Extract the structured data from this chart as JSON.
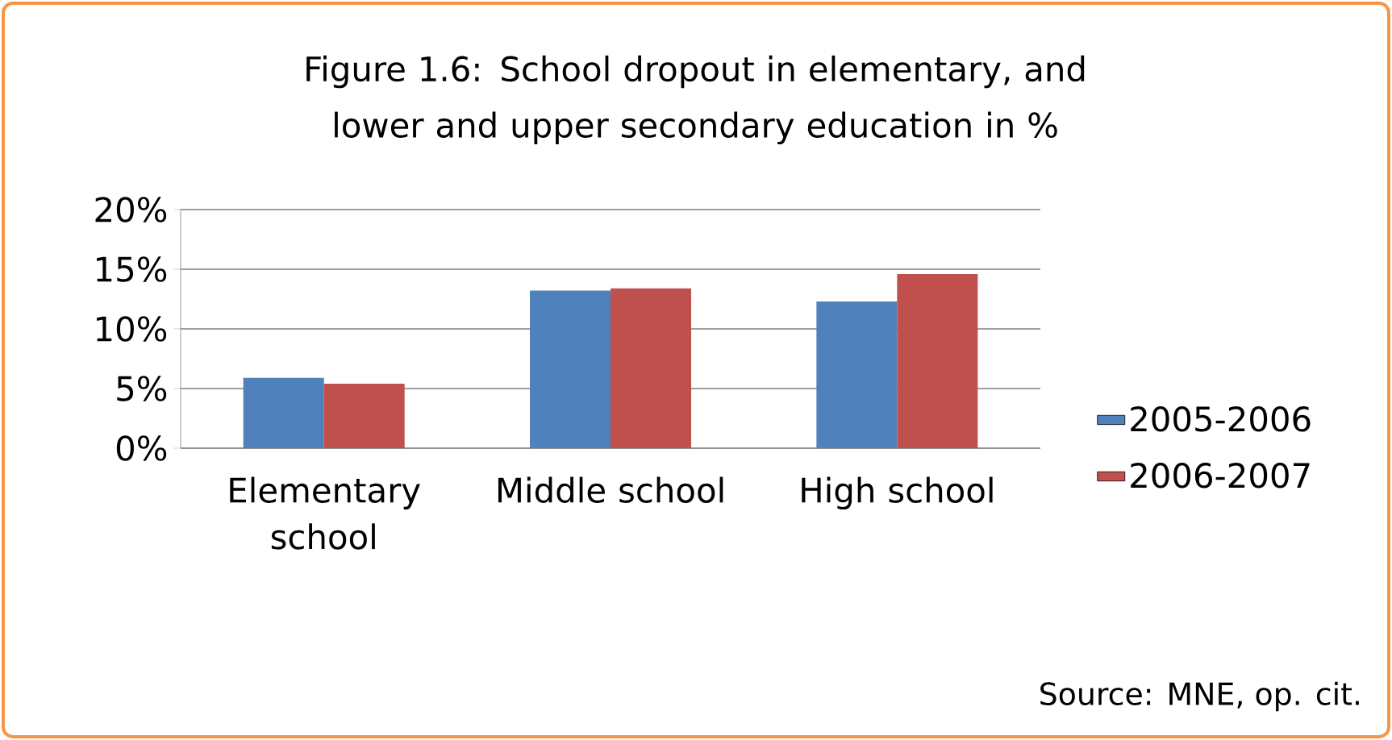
{
  "chart_data": {
    "type": "bar",
    "title": "Figure 1.6: School dropout in elementary, and lower and upper secondary education in %",
    "categories": [
      "Elementary school",
      "Middle school",
      "High school"
    ],
    "series": [
      {
        "name": "2005-2006",
        "color": "#4f81bd",
        "values": [
          5.9,
          13.2,
          12.3
        ]
      },
      {
        "name": "2006-2007",
        "color": "#c0504d",
        "values": [
          5.4,
          13.4,
          14.6
        ]
      }
    ],
    "ylim": [
      0,
      20
    ],
    "yticks": [
      {
        "value": 0,
        "label": "0%"
      },
      {
        "value": 5,
        "label": "5%"
      },
      {
        "value": 10,
        "label": "10%"
      },
      {
        "value": 15,
        "label": "15%"
      },
      {
        "value": 20,
        "label": "20%"
      }
    ],
    "grid": "y",
    "legend": "right",
    "annotations": [
      "Source: MNE, op. cit."
    ]
  }
}
